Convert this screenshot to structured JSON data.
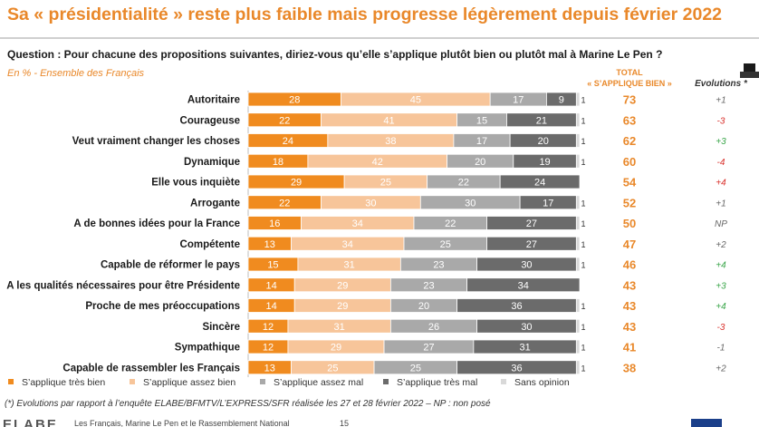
{
  "colors": {
    "tres_bien": "#f08b1f",
    "assez_bien": "#f7c59a",
    "assez_mal": "#a9a9a9",
    "tres_mal": "#6b6b6b",
    "sans_opinion": "#d9d9d9",
    "accent": "#e9882a",
    "positive": "#3aa64a",
    "negative": "#d9312c",
    "neutral": "#666666"
  },
  "page": {
    "headline": "Sa « présidentialité » reste plus faible mais progresse légèrement depuis février 2022",
    "question": "Question : Pour chacune des propositions suivantes, diriez-vous qu’elle s’applique plutôt bien ou plutôt mal à Marine Le Pen ?",
    "subtitle": "En % - Ensemble des Français",
    "total_header_line1": "TOTAL",
    "total_header_line2": "« S’APPLIQUE BIEN »",
    "evolutions_header": "Evolutions *",
    "footnote": "(*) Evolutions par rapport à l’enquête ELABE/BFMTV/L’EXPRESS/SFR réalisée les 27 et 28 février 2022 – NP : non posé",
    "footer_logo": "ELABE",
    "footer_text": "Les Français, Marine Le Pen et le Rassemblement National",
    "footer_page": "15"
  },
  "chart_data": {
    "type": "bar",
    "orientation": "horizontal",
    "stacked": true,
    "xlim": [
      0,
      100
    ],
    "categories": [
      "Autoritaire",
      "Courageuse",
      "Veut vraiment changer les choses",
      "Dynamique",
      "Elle vous inquiète",
      "Arrogante",
      "A de bonnes idées pour la France",
      "Compétente",
      "Capable de réformer le pays",
      "A les qualités nécessaires pour être Présidente",
      "Proche de mes préoccupations",
      "Sincère",
      "Sympathique",
      "Capable de rassembler les Français"
    ],
    "series": [
      {
        "name": "S’applique très bien",
        "color_key": "tres_bien",
        "values": [
          28,
          22,
          24,
          18,
          29,
          22,
          16,
          13,
          15,
          14,
          14,
          12,
          12,
          13
        ]
      },
      {
        "name": "S’applique assez bien",
        "color_key": "assez_bien",
        "values": [
          45,
          41,
          38,
          42,
          25,
          30,
          34,
          34,
          31,
          29,
          29,
          31,
          29,
          25
        ]
      },
      {
        "name": "S’applique assez mal",
        "color_key": "assez_mal",
        "values": [
          17,
          15,
          17,
          20,
          22,
          30,
          22,
          25,
          23,
          23,
          20,
          26,
          27,
          25
        ]
      },
      {
        "name": "S’applique très mal",
        "color_key": "tres_mal",
        "values": [
          9,
          21,
          20,
          19,
          24,
          17,
          27,
          27,
          30,
          34,
          36,
          30,
          31,
          36
        ]
      },
      {
        "name": "Sans opinion",
        "color_key": "sans_opinion",
        "values": [
          1,
          1,
          1,
          1,
          0,
          1,
          1,
          1,
          1,
          0,
          1,
          1,
          1,
          1
        ]
      }
    ],
    "total_applique_bien": [
      73,
      63,
      62,
      60,
      54,
      52,
      50,
      47,
      46,
      43,
      43,
      43,
      41,
      38
    ],
    "evolutions": [
      "+1",
      "-3",
      "+3",
      "-4",
      "+4",
      "+1",
      "NP",
      "+2",
      "+4",
      "+3",
      "+4",
      "-3",
      "-1",
      "+2"
    ],
    "evolution_colors": [
      "neutral",
      "negative",
      "positive",
      "negative",
      "negative",
      "neutral",
      "neutral",
      "neutral",
      "positive",
      "positive",
      "positive",
      "negative",
      "neutral",
      "neutral"
    ],
    "legend": [
      "S’applique très bien",
      "S’applique assez bien",
      "S’applique assez mal",
      "S’applique très mal",
      "Sans opinion"
    ],
    "legend_position": "bottom"
  }
}
